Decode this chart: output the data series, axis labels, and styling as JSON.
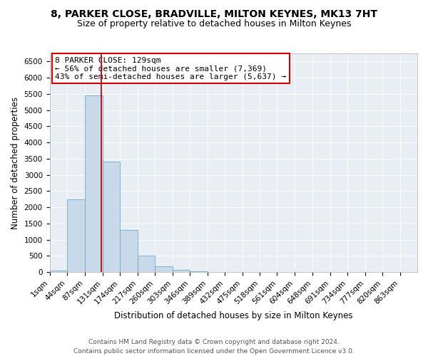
{
  "title": "8, PARKER CLOSE, BRADVILLE, MILTON KEYNES, MK13 7HT",
  "subtitle": "Size of property relative to detached houses in Milton Keynes",
  "xlabel": "Distribution of detached houses by size in Milton Keynes",
  "ylabel": "Number of detached properties",
  "footer_line1": "Contains HM Land Registry data © Crown copyright and database right 2024.",
  "footer_line2": "Contains public sector information licensed under the Open Government Licence v3.0.",
  "annotation_title": "8 PARKER CLOSE: 129sqm",
  "annotation_line1": "← 56% of detached houses are smaller (7,369)",
  "annotation_line2": "43% of semi-detached houses are larger (5,637) →",
  "bar_color": "#c8daea",
  "bar_edgecolor": "#6aabcc",
  "red_line_x": 129,
  "categories": [
    "1sqm",
    "44sqm",
    "87sqm",
    "131sqm",
    "174sqm",
    "217sqm",
    "260sqm",
    "303sqm",
    "346sqm",
    "389sqm",
    "432sqm",
    "475sqm",
    "518sqm",
    "561sqm",
    "604sqm",
    "648sqm",
    "691sqm",
    "734sqm",
    "777sqm",
    "820sqm",
    "863sqm"
  ],
  "bin_edges": [
    1,
    44,
    87,
    131,
    174,
    217,
    260,
    303,
    346,
    389,
    432,
    475,
    518,
    561,
    604,
    648,
    691,
    734,
    777,
    820,
    863,
    906
  ],
  "values": [
    50,
    2250,
    5450,
    3400,
    1300,
    500,
    175,
    75,
    30,
    0,
    0,
    0,
    0,
    0,
    0,
    0,
    0,
    0,
    0,
    0,
    0
  ],
  "ylim": [
    0,
    6750
  ],
  "yticks": [
    0,
    500,
    1000,
    1500,
    2000,
    2500,
    3000,
    3500,
    4000,
    4500,
    5000,
    5500,
    6000,
    6500
  ],
  "fig_bg_color": "#ffffff",
  "plot_bg_color": "#e8eef4",
  "grid_color": "#ffffff",
  "annotation_box_facecolor": "#ffffff",
  "annotation_box_edgecolor": "#cc0000",
  "title_fontsize": 10,
  "subtitle_fontsize": 9,
  "axis_label_fontsize": 8.5,
  "tick_fontsize": 7.5,
  "annotation_fontsize": 8,
  "footer_fontsize": 6.5
}
